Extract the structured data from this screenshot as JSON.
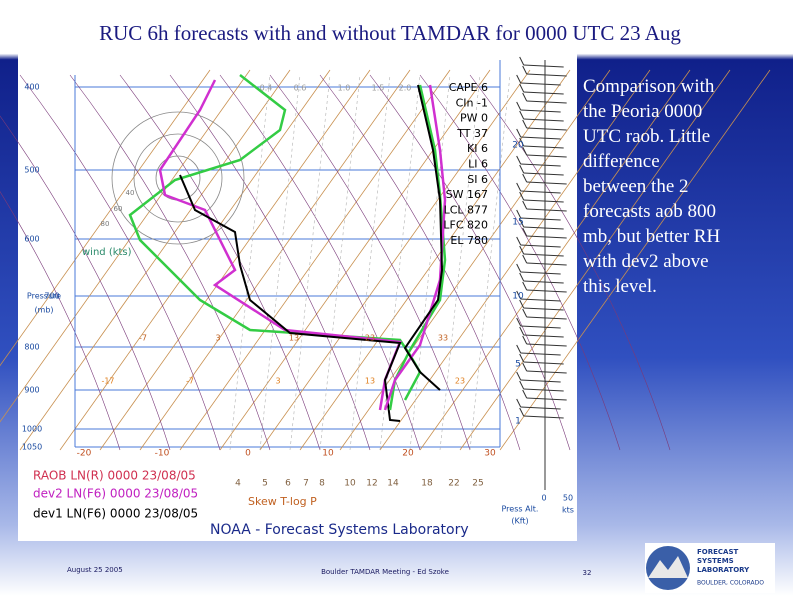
{
  "title": "RUC 6h forecasts with and without TAMDAR for 0000 UTC 23 Aug",
  "comment": [
    "Comparison with",
    "the Peoria 0000",
    "UTC raob.  Little",
    "difference",
    "between the 2",
    "forecasts aob 800",
    "mb, but better RH",
    "with dev2 above",
    "this level."
  ],
  "skewt": {
    "pressure_labels": [
      "400",
      "500",
      "600",
      "700",
      "800",
      "900",
      "1000",
      "1050"
    ],
    "pressure_title": [
      "Pressure",
      "(mb)"
    ],
    "indices": [
      "CAPE 6",
      "CIn -1",
      "PW 0",
      "TT 37",
      "KI 6",
      "LI 6",
      "SI 6",
      "SW 167",
      "LCL 877",
      "LFC 820",
      "EL 780"
    ],
    "legend": [
      "RAOB LN(R) 0000 23/08/05",
      "dev2 LN(F6) 0000 23/08/05",
      "dev1 LN(F6) 0000 23/08/05"
    ],
    "temperature_labels": [
      "-20",
      "-10",
      "0",
      "10",
      "20",
      "30"
    ],
    "mixing_ratio_labels": [
      "4",
      "5",
      "6",
      "7",
      "8",
      "10",
      "12",
      "14",
      "18",
      "22",
      "25"
    ],
    "top_labels": [
      "0.4",
      "0.6",
      "1.0",
      "1.5",
      "2.0"
    ],
    "row_labels_upper": [
      "-7",
      "3",
      "13",
      "23",
      "33"
    ],
    "row_labels_lower": [
      "-17",
      "-7",
      "3",
      "13",
      "23"
    ],
    "ring_labels": [
      "40",
      "60",
      "80"
    ],
    "height_labels": [
      "20",
      "15",
      "10",
      "5",
      "1"
    ],
    "wind_label": "wind (kts)",
    "chart_label": "Skew T-log P",
    "credit": "NOAA - Forecast Systems Laboratory",
    "press_alt": [
      "Press Alt.",
      "(Kft)"
    ],
    "wind_scale": [
      "0",
      "50",
      "kts"
    ]
  },
  "footer": {
    "date": "August 25 2005",
    "meeting": "Boulder TAMDAR Meeting - Ed Szoke",
    "page": "32"
  },
  "logo": {
    "lines": [
      "FORECAST",
      "SYSTEMS",
      "LABORATORY"
    ],
    "place": "BOULDER, COLORADO"
  }
}
